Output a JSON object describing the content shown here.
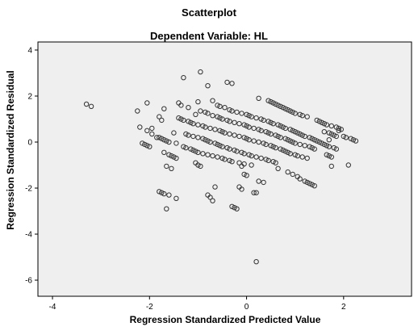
{
  "chart_data": {
    "type": "scatter",
    "title": "Scatterplot",
    "subtitle": "Dependent Variable: HL",
    "xlabel": "Regression Standardized Predicted Value",
    "ylabel": "Regression Standardized Residual",
    "xlim": [
      -4.3,
      3.4
    ],
    "ylim": [
      -6.7,
      4.35
    ],
    "xticks": [
      -4,
      -2,
      0,
      2
    ],
    "yticks": [
      4,
      2,
      0,
      -2,
      -4,
      -6
    ],
    "grid": false,
    "legend": "none",
    "background": "#efefef",
    "marker_color": "#333333",
    "points": [
      [
        -3.3,
        1.65
      ],
      [
        -3.2,
        1.55
      ],
      [
        -2.25,
        1.35
      ],
      [
        -2.2,
        0.65
      ],
      [
        -2.15,
        -0.05
      ],
      [
        -2.1,
        -0.1
      ],
      [
        -2.05,
        -0.15
      ],
      [
        -2.05,
        1.7
      ],
      [
        -2.05,
        0.5
      ],
      [
        -2.0,
        -0.2
      ],
      [
        -1.95,
        0.35
      ],
      [
        -1.95,
        0.6
      ],
      [
        -1.85,
        0.2
      ],
      [
        -1.8,
        0.2
      ],
      [
        -1.75,
        0.15
      ],
      [
        -1.7,
        0.1
      ],
      [
        -1.65,
        0.05
      ],
      [
        -1.6,
        0.0
      ],
      [
        -1.8,
        1.1
      ],
      [
        -1.75,
        0.95
      ],
      [
        -1.7,
        1.45
      ],
      [
        -1.7,
        -0.45
      ],
      [
        -1.65,
        -1.05
      ],
      [
        -1.6,
        -0.55
      ],
      [
        -1.55,
        -0.6
      ],
      [
        -1.55,
        -1.15
      ],
      [
        -1.5,
        -0.65
      ],
      [
        -1.45,
        -0.7
      ],
      [
        -1.8,
        -2.15
      ],
      [
        -1.75,
        -2.2
      ],
      [
        -1.7,
        -2.25
      ],
      [
        -1.65,
        -2.9
      ],
      [
        -1.6,
        -2.3
      ],
      [
        -1.45,
        -2.45
      ],
      [
        -1.5,
        0.4
      ],
      [
        -1.45,
        -0.05
      ],
      [
        -1.4,
        1.05
      ],
      [
        -1.4,
        1.7
      ],
      [
        -1.35,
        1.0
      ],
      [
        -1.35,
        1.6
      ],
      [
        -1.3,
        2.8
      ],
      [
        -1.3,
        0.95
      ],
      [
        -1.3,
        -0.2
      ],
      [
        -1.25,
        0.35
      ],
      [
        -1.25,
        -0.25
      ],
      [
        -1.2,
        0.3
      ],
      [
        -1.2,
        0.9
      ],
      [
        -1.2,
        1.5
      ],
      [
        -1.15,
        -0.3
      ],
      [
        -1.15,
        0.85
      ],
      [
        -1.1,
        0.25
      ],
      [
        -1.1,
        -0.35
      ],
      [
        -1.1,
        0.8
      ],
      [
        -1.05,
        -0.4
      ],
      [
        -1.05,
        1.2
      ],
      [
        -1.0,
        0.2
      ],
      [
        -1.0,
        -0.45
      ],
      [
        -1.0,
        0.75
      ],
      [
        -1.05,
        -0.9
      ],
      [
        -1.0,
        -1.0
      ],
      [
        -0.95,
        -1.05
      ],
      [
        -1.0,
        1.75
      ],
      [
        -0.95,
        3.05
      ],
      [
        -0.95,
        1.35
      ],
      [
        -0.9,
        0.15
      ],
      [
        -0.9,
        0.7
      ],
      [
        -0.9,
        -0.5
      ],
      [
        -0.85,
        1.3
      ],
      [
        -0.85,
        0.1
      ],
      [
        -0.85,
        0.65
      ],
      [
        -0.8,
        0.05
      ],
      [
        -0.8,
        -0.55
      ],
      [
        -0.8,
        1.25
      ],
      [
        -0.8,
        2.45
      ],
      [
        -0.8,
        -2.3
      ],
      [
        -0.75,
        -2.4
      ],
      [
        -0.75,
        0.0
      ],
      [
        -0.75,
        0.6
      ],
      [
        -0.7,
        1.8
      ],
      [
        -0.7,
        1.15
      ],
      [
        -0.7,
        -0.6
      ],
      [
        -0.7,
        -2.55
      ],
      [
        -0.65,
        -1.95
      ],
      [
        -0.65,
        -0.05
      ],
      [
        -0.65,
        0.55
      ],
      [
        -0.6,
        1.1
      ],
      [
        -0.6,
        -0.1
      ],
      [
        -0.6,
        -0.65
      ],
      [
        -0.6,
        1.6
      ],
      [
        -0.55,
        0.5
      ],
      [
        -0.55,
        1.05
      ],
      [
        -0.55,
        -0.15
      ],
      [
        -0.55,
        1.55
      ],
      [
        -0.5,
        -0.7
      ],
      [
        -0.5,
        0.45
      ],
      [
        -0.5,
        1.0
      ],
      [
        -0.5,
        -0.2
      ],
      [
        -0.45,
        1.5
      ],
      [
        -0.45,
        -0.75
      ],
      [
        -0.45,
        0.4
      ],
      [
        -0.4,
        0.95
      ],
      [
        -0.4,
        -0.25
      ],
      [
        -0.4,
        2.6
      ],
      [
        -0.35,
        1.4
      ],
      [
        -0.35,
        0.35
      ],
      [
        -0.35,
        -0.3
      ],
      [
        -0.35,
        0.9
      ],
      [
        -0.35,
        -0.8
      ],
      [
        -0.3,
        2.55
      ],
      [
        -0.3,
        1.35
      ],
      [
        -0.3,
        -2.8
      ],
      [
        -0.25,
        -2.85
      ],
      [
        -0.3,
        -0.85
      ],
      [
        -0.25,
        0.3
      ],
      [
        -0.25,
        0.85
      ],
      [
        -0.25,
        -0.35
      ],
      [
        -0.2,
        -2.9
      ],
      [
        -0.2,
        1.3
      ],
      [
        -0.2,
        -0.4
      ],
      [
        -0.15,
        0.8
      ],
      [
        -0.15,
        0.25
      ],
      [
        -0.15,
        -0.9
      ],
      [
        -0.1,
        -0.45
      ],
      [
        -0.1,
        1.25
      ],
      [
        -0.1,
        -1.05
      ],
      [
        -0.05,
        0.75
      ],
      [
        -0.05,
        0.2
      ],
      [
        -0.05,
        -0.95
      ],
      [
        -0.05,
        -0.5
      ],
      [
        0.0,
        1.2
      ],
      [
        0.0,
        0.7
      ],
      [
        0.0,
        0.15
      ],
      [
        0.0,
        -1.45
      ],
      [
        -0.15,
        -1.95
      ],
      [
        -0.1,
        -2.05
      ],
      [
        -0.05,
        -1.4
      ],
      [
        0.05,
        -0.55
      ],
      [
        0.05,
        1.15
      ],
      [
        0.05,
        0.65
      ],
      [
        0.05,
        0.1
      ],
      [
        0.1,
        -1.0
      ],
      [
        0.1,
        -0.6
      ],
      [
        0.1,
        1.1
      ],
      [
        0.15,
        -2.2
      ],
      [
        0.15,
        0.6
      ],
      [
        0.15,
        0.05
      ],
      [
        0.2,
        -0.65
      ],
      [
        0.2,
        1.05
      ],
      [
        0.2,
        -2.2
      ],
      [
        0.25,
        1.9
      ],
      [
        0.25,
        0.55
      ],
      [
        0.25,
        0.0
      ],
      [
        0.25,
        -1.7
      ],
      [
        0.2,
        -5.2
      ],
      [
        0.3,
        -0.7
      ],
      [
        0.3,
        1.0
      ],
      [
        0.3,
        0.5
      ],
      [
        0.35,
        -0.05
      ],
      [
        0.35,
        -1.75
      ],
      [
        0.35,
        0.95
      ],
      [
        0.4,
        0.45
      ],
      [
        0.4,
        -0.75
      ],
      [
        0.4,
        -0.1
      ],
      [
        0.45,
        1.8
      ],
      [
        0.45,
        0.9
      ],
      [
        0.45,
        0.4
      ],
      [
        0.45,
        -0.8
      ],
      [
        0.5,
        -0.15
      ],
      [
        0.5,
        1.75
      ],
      [
        0.5,
        0.85
      ],
      [
        0.5,
        0.35
      ],
      [
        0.55,
        -0.2
      ],
      [
        0.55,
        -0.85
      ],
      [
        0.55,
        1.7
      ],
      [
        0.55,
        0.8
      ],
      [
        0.6,
        0.3
      ],
      [
        0.6,
        1.65
      ],
      [
        0.6,
        -0.25
      ],
      [
        0.6,
        -0.9
      ],
      [
        0.65,
        0.75
      ],
      [
        0.65,
        0.25
      ],
      [
        0.65,
        1.6
      ],
      [
        0.65,
        -1.15
      ],
      [
        0.7,
        -0.3
      ],
      [
        0.7,
        0.7
      ],
      [
        0.7,
        1.55
      ],
      [
        0.7,
        0.2
      ],
      [
        0.75,
        -0.35
      ],
      [
        0.75,
        1.5
      ],
      [
        0.75,
        0.65
      ],
      [
        0.8,
        0.15
      ],
      [
        0.8,
        -0.4
      ],
      [
        0.8,
        1.45
      ],
      [
        0.8,
        0.6
      ],
      [
        0.85,
        0.1
      ],
      [
        0.85,
        -0.45
      ],
      [
        0.85,
        1.4
      ],
      [
        0.85,
        -1.3
      ],
      [
        0.9,
        0.55
      ],
      [
        0.9,
        0.05
      ],
      [
        0.9,
        1.35
      ],
      [
        0.9,
        -0.5
      ],
      [
        0.95,
        0.5
      ],
      [
        0.95,
        0.0
      ],
      [
        0.95,
        1.3
      ],
      [
        0.95,
        -1.4
      ],
      [
        1.0,
        -0.55
      ],
      [
        1.0,
        0.45
      ],
      [
        1.0,
        -0.05
      ],
      [
        1.0,
        1.25
      ],
      [
        1.05,
        -1.5
      ],
      [
        1.05,
        0.4
      ],
      [
        1.05,
        -0.6
      ],
      [
        1.1,
        1.2
      ],
      [
        1.1,
        -0.1
      ],
      [
        1.1,
        0.35
      ],
      [
        1.1,
        -1.6
      ],
      [
        1.15,
        -0.65
      ],
      [
        1.15,
        0.3
      ],
      [
        1.15,
        1.15
      ],
      [
        1.2,
        -0.15
      ],
      [
        1.2,
        -1.7
      ],
      [
        1.2,
        0.25
      ],
      [
        1.25,
        -0.7
      ],
      [
        1.25,
        1.1
      ],
      [
        1.25,
        -1.75
      ],
      [
        1.3,
        0.2
      ],
      [
        1.3,
        -0.2
      ],
      [
        1.3,
        -1.8
      ],
      [
        1.35,
        0.15
      ],
      [
        1.35,
        -0.25
      ],
      [
        1.35,
        -1.85
      ],
      [
        1.4,
        0.1
      ],
      [
        1.4,
        -0.3
      ],
      [
        1.4,
        -1.9
      ],
      [
        1.45,
        0.05
      ],
      [
        1.45,
        0.95
      ],
      [
        1.5,
        0.0
      ],
      [
        1.5,
        0.9
      ],
      [
        1.55,
        -0.05
      ],
      [
        1.55,
        0.85
      ],
      [
        1.6,
        -0.1
      ],
      [
        1.6,
        0.8
      ],
      [
        1.6,
        0.45
      ],
      [
        1.65,
        -0.15
      ],
      [
        1.65,
        0.75
      ],
      [
        1.7,
        0.4
      ],
      [
        1.7,
        -0.2
      ],
      [
        1.75,
        0.7
      ],
      [
        1.75,
        0.35
      ],
      [
        1.8,
        -0.25
      ],
      [
        1.8,
        0.3
      ],
      [
        1.85,
        0.65
      ],
      [
        1.85,
        -0.3
      ],
      [
        1.85,
        0.25
      ],
      [
        1.9,
        0.6
      ],
      [
        1.7,
        0.1
      ],
      [
        1.65,
        -0.55
      ],
      [
        1.7,
        -0.6
      ],
      [
        1.75,
        -0.65
      ],
      [
        1.75,
        -1.05
      ],
      [
        2.05,
        0.2
      ],
      [
        2.1,
        -1.0
      ],
      [
        2.15,
        0.15
      ],
      [
        2.2,
        0.1
      ],
      [
        2.25,
        0.05
      ],
      [
        2.0,
        0.25
      ],
      [
        1.95,
        0.55
      ],
      [
        1.9,
        0.5
      ]
    ]
  }
}
